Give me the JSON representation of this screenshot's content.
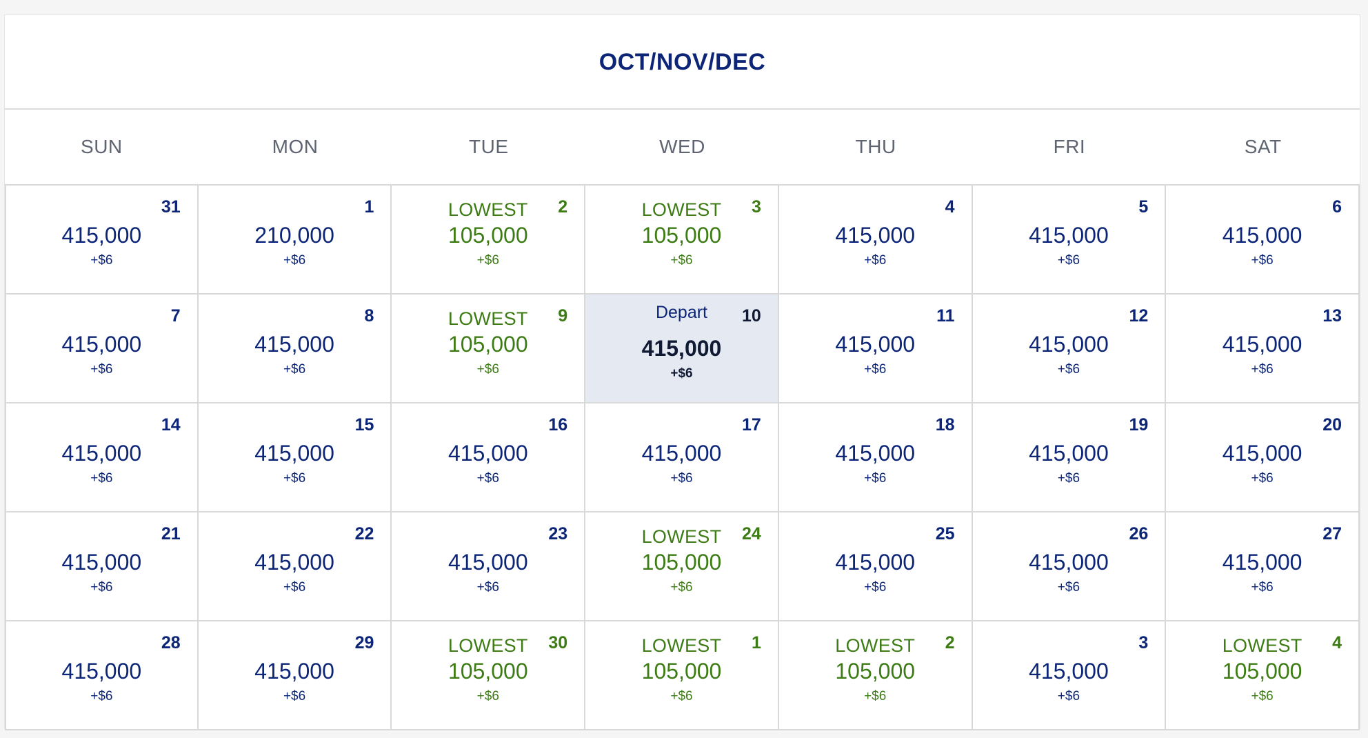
{
  "calendar": {
    "title": "OCT/NOV/DEC",
    "weekdays": [
      "SUN",
      "MON",
      "TUE",
      "WED",
      "THU",
      "FRI",
      "SAT"
    ],
    "lowest_label": "LOWEST",
    "depart_label": "Depart",
    "colors": {
      "navy": "#0c2577",
      "lowest_green": "#3d7c14",
      "selected_bg": "#e4e9f2"
    },
    "weeks": [
      [
        {
          "day": "31",
          "price": "415,000",
          "fee": "+$6",
          "lowest": false
        },
        {
          "day": "1",
          "price": "210,000",
          "fee": "+$6",
          "lowest": false
        },
        {
          "day": "2",
          "price": "105,000",
          "fee": "+$6",
          "lowest": true
        },
        {
          "day": "3",
          "price": "105,000",
          "fee": "+$6",
          "lowest": true
        },
        {
          "day": "4",
          "price": "415,000",
          "fee": "+$6",
          "lowest": false
        },
        {
          "day": "5",
          "price": "415,000",
          "fee": "+$6",
          "lowest": false
        },
        {
          "day": "6",
          "price": "415,000",
          "fee": "+$6",
          "lowest": false
        }
      ],
      [
        {
          "day": "7",
          "price": "415,000",
          "fee": "+$6",
          "lowest": false
        },
        {
          "day": "8",
          "price": "415,000",
          "fee": "+$6",
          "lowest": false
        },
        {
          "day": "9",
          "price": "105,000",
          "fee": "+$6",
          "lowest": true
        },
        {
          "day": "10",
          "price": "415,000",
          "fee": "+$6",
          "lowest": false,
          "selected": true
        },
        {
          "day": "11",
          "price": "415,000",
          "fee": "+$6",
          "lowest": false
        },
        {
          "day": "12",
          "price": "415,000",
          "fee": "+$6",
          "lowest": false
        },
        {
          "day": "13",
          "price": "415,000",
          "fee": "+$6",
          "lowest": false
        }
      ],
      [
        {
          "day": "14",
          "price": "415,000",
          "fee": "+$6",
          "lowest": false
        },
        {
          "day": "15",
          "price": "415,000",
          "fee": "+$6",
          "lowest": false
        },
        {
          "day": "16",
          "price": "415,000",
          "fee": "+$6",
          "lowest": false
        },
        {
          "day": "17",
          "price": "415,000",
          "fee": "+$6",
          "lowest": false
        },
        {
          "day": "18",
          "price": "415,000",
          "fee": "+$6",
          "lowest": false
        },
        {
          "day": "19",
          "price": "415,000",
          "fee": "+$6",
          "lowest": false
        },
        {
          "day": "20",
          "price": "415,000",
          "fee": "+$6",
          "lowest": false
        }
      ],
      [
        {
          "day": "21",
          "price": "415,000",
          "fee": "+$6",
          "lowest": false
        },
        {
          "day": "22",
          "price": "415,000",
          "fee": "+$6",
          "lowest": false
        },
        {
          "day": "23",
          "price": "415,000",
          "fee": "+$6",
          "lowest": false
        },
        {
          "day": "24",
          "price": "105,000",
          "fee": "+$6",
          "lowest": true
        },
        {
          "day": "25",
          "price": "415,000",
          "fee": "+$6",
          "lowest": false
        },
        {
          "day": "26",
          "price": "415,000",
          "fee": "+$6",
          "lowest": false
        },
        {
          "day": "27",
          "price": "415,000",
          "fee": "+$6",
          "lowest": false
        }
      ],
      [
        {
          "day": "28",
          "price": "415,000",
          "fee": "+$6",
          "lowest": false
        },
        {
          "day": "29",
          "price": "415,000",
          "fee": "+$6",
          "lowest": false
        },
        {
          "day": "30",
          "price": "105,000",
          "fee": "+$6",
          "lowest": true
        },
        {
          "day": "1",
          "price": "105,000",
          "fee": "+$6",
          "lowest": true
        },
        {
          "day": "2",
          "price": "105,000",
          "fee": "+$6",
          "lowest": true
        },
        {
          "day": "3",
          "price": "415,000",
          "fee": "+$6",
          "lowest": false
        },
        {
          "day": "4",
          "price": "105,000",
          "fee": "+$6",
          "lowest": true
        }
      ]
    ]
  }
}
